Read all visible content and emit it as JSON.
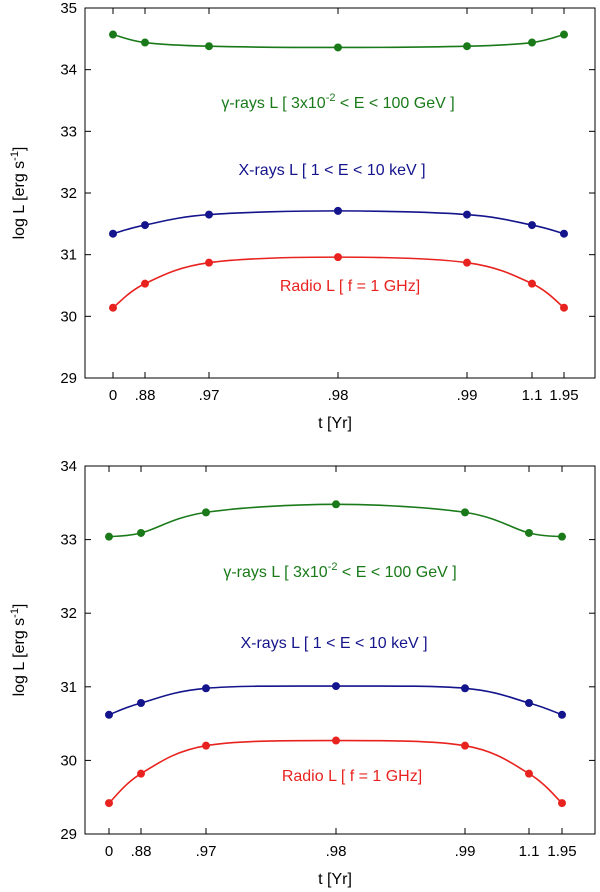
{
  "chart_data": [
    {
      "type": "line",
      "panel": "top",
      "categories": [
        "0",
        ".88",
        ".97",
        ".98",
        ".99",
        "1.1",
        "1.95"
      ],
      "xlabel": "t [Yr]",
      "ylabel_main": "log L [erg s",
      "ylabel_sup": "-1",
      "ylabel_close": "]",
      "ylim": [
        29,
        35
      ],
      "yticks": [
        "29",
        "30",
        "31",
        "32",
        "33",
        "34",
        "35"
      ],
      "series": [
        {
          "name": "gamma",
          "color": "#1a7a1a",
          "values": [
            34.57,
            34.44,
            34.38,
            34.36,
            34.38,
            34.44,
            34.57
          ]
        },
        {
          "name": "xray",
          "color": "#14148c",
          "values": [
            31.34,
            31.48,
            31.65,
            31.71,
            31.65,
            31.48,
            31.34
          ]
        },
        {
          "name": "radio",
          "color": "#e8231f",
          "values": [
            30.14,
            30.53,
            30.87,
            30.96,
            30.87,
            30.53,
            30.14
          ]
        }
      ],
      "annotations": {
        "gamma_a": "γ-rays L [ 3x10",
        "gamma_sup": "-2",
        "gamma_b": " < E < 100 GeV ]",
        "xray": "X-rays L [ 1 < E < 10 keV ]",
        "radio": "Radio L [ f = 1 GHz]"
      }
    },
    {
      "type": "line",
      "panel": "bottom",
      "categories": [
        "0",
        ".88",
        ".97",
        ".98",
        ".99",
        "1.1",
        "1.95"
      ],
      "xlabel": "t [Yr]",
      "ylabel_main": "log L [erg s",
      "ylabel_sup": "-1",
      "ylabel_close": "]",
      "ylim": [
        29,
        34
      ],
      "yticks": [
        "29",
        "30",
        "31",
        "32",
        "33",
        "34"
      ],
      "series": [
        {
          "name": "gamma",
          "color": "#1a7a1a",
          "values": [
            33.04,
            33.09,
            33.37,
            33.48,
            33.37,
            33.09,
            33.04
          ]
        },
        {
          "name": "xray",
          "color": "#14148c",
          "values": [
            30.62,
            30.78,
            30.98,
            31.01,
            30.98,
            30.78,
            30.62
          ]
        },
        {
          "name": "radio",
          "color": "#e8231f",
          "values": [
            29.42,
            29.82,
            30.2,
            30.27,
            30.2,
            29.82,
            29.42
          ]
        }
      ],
      "annotations": {
        "gamma_a": "γ-rays L [ 3x10",
        "gamma_sup": "-2",
        "gamma_b": " < E < 100 GeV ]",
        "xray": "X-rays L [ 1 < E < 10 keV ]",
        "radio": "Radio L [ f = 1 GHz]"
      }
    }
  ]
}
